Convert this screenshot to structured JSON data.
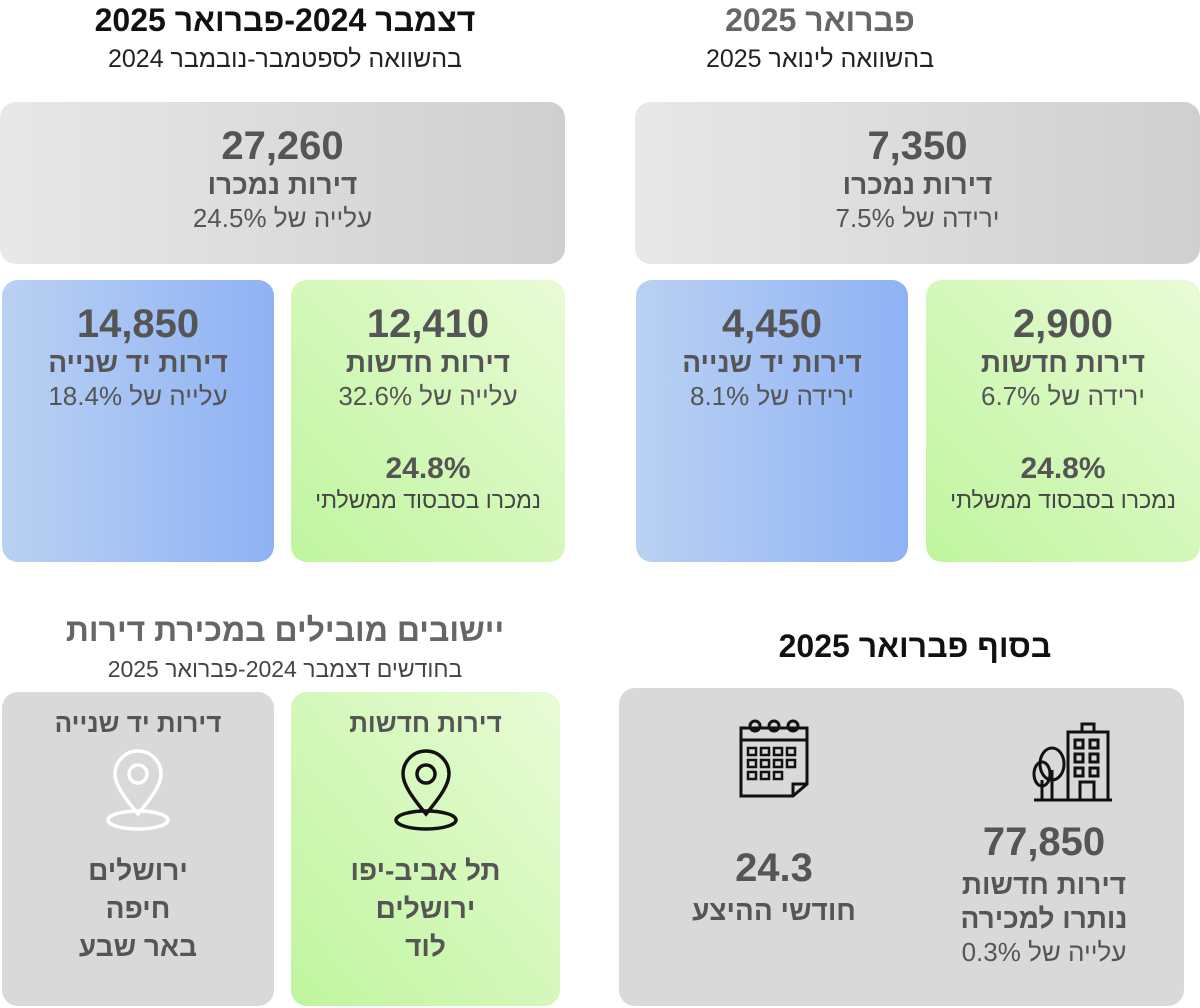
{
  "monthly": {
    "title": "פברואר 2025",
    "subtitle": "בהשוואה לינואר 2025",
    "total": {
      "value": "7,350",
      "label": "דירות נמכרו",
      "change": "ירידה של 7.5%"
    },
    "new": {
      "value": "2,900",
      "label": "דירות חדשות",
      "change": "ירידה של 6.7%",
      "subsidy_pct": "24.8%",
      "subsidy_label": "נמכרו בסבסוד ממשלתי"
    },
    "second_hand": {
      "value": "4,450",
      "label": "דירות יד שנייה",
      "change": "ירידה של 8.1%"
    }
  },
  "quarterly": {
    "title": "דצמבר 2024-פברואר 2025",
    "subtitle": "בהשוואה לספטמבר-נובמבר 2024",
    "total": {
      "value": "27,260",
      "label": "דירות נמכרו",
      "change": "עלייה של 24.5%"
    },
    "new": {
      "value": "12,410",
      "label": "דירות חדשות",
      "change": "עלייה של 32.6%",
      "subsidy_pct": "24.8%",
      "subsidy_label": "נמכרו בסבסוד ממשלתי"
    },
    "second_hand": {
      "value": "14,850",
      "label": "דירות יד שנייה",
      "change": "עלייה של 18.4%"
    }
  },
  "end_of_month": {
    "title": "בסוף פברואר 2025",
    "inventory": {
      "value": "77,850",
      "label_line1": "דירות חדשות",
      "label_line2": "נותרו למכירה",
      "change": "עלייה של 0.3%",
      "icon": "building-icon"
    },
    "supply_months": {
      "value": "24.3",
      "label": "חודשי ההיצע",
      "icon": "calendar-icon"
    }
  },
  "leading_cities": {
    "title": "יישובים מובילים במכירת דירות",
    "subtitle": "בחודשים דצמבר 2024-פברואר 2025",
    "new": {
      "label": "דירות חדשות",
      "icon": "location-pin-icon",
      "cities": [
        "תל אביב-יפו",
        "ירושלים",
        "לוד"
      ]
    },
    "second_hand": {
      "label": "דירות יד שנייה",
      "icon": "location-pin-icon",
      "cities": [
        "ירושלים",
        "חיפה",
        "באר שבע"
      ]
    }
  },
  "colors": {
    "green_card": "#bff59e",
    "blue_card": "#8fb2f5",
    "grey_card": "#d9d9d9",
    "text": "#555555"
  }
}
